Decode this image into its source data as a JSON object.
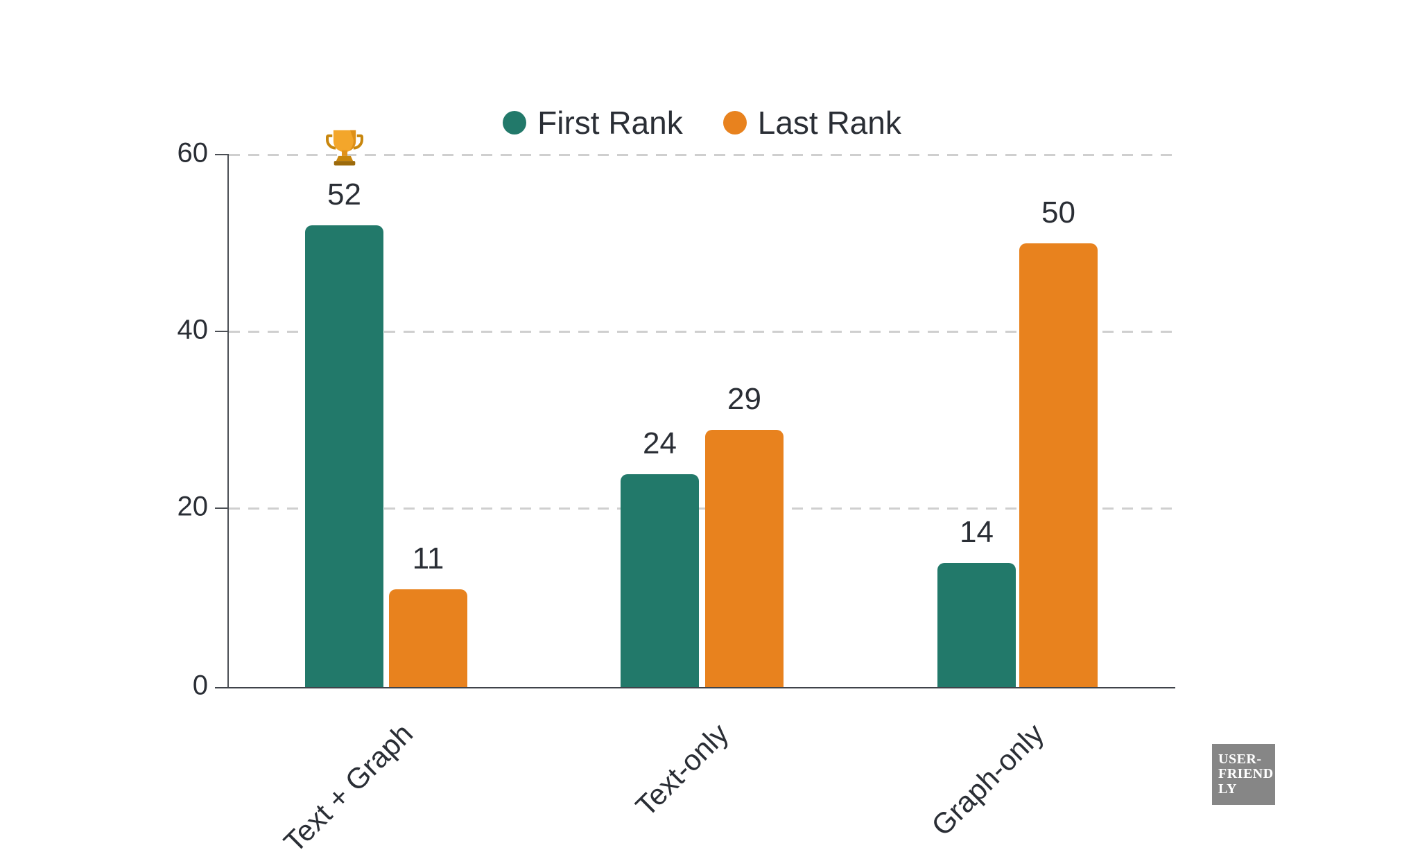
{
  "chart_data": {
    "type": "bar",
    "title": "",
    "categories": [
      "Text + Graph",
      "Text-only",
      "Graph-only"
    ],
    "series": [
      {
        "name": "First Rank",
        "color": "#22796A",
        "values": [
          52,
          24,
          14
        ]
      },
      {
        "name": "Last Rank",
        "color": "#E8821E",
        "values": [
          11,
          29,
          50
        ]
      }
    ],
    "ylim": [
      0,
      60
    ],
    "yticks": [
      0,
      20,
      40,
      60
    ],
    "grid": "horizontal-dashed",
    "legend_position": "top-center",
    "annotations": [
      {
        "type": "emoji",
        "text": "🏆",
        "note": "trophy above the First Rank bar of Text + Graph"
      }
    ]
  },
  "watermark": {
    "lines": [
      "USER-",
      "FRIEND",
      "LY"
    ]
  }
}
